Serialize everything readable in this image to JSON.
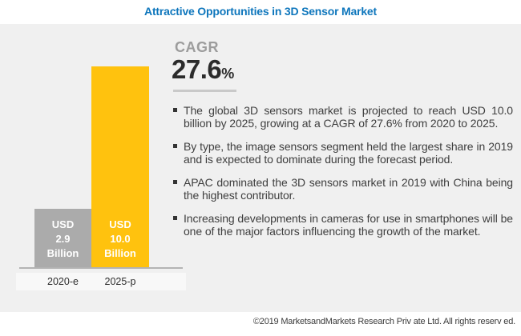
{
  "title": "Attractive Opportunities in 3D Sensor Market",
  "cagr": {
    "label": "CAGR",
    "value": "27.6",
    "percent_sign": "%"
  },
  "insights": [
    "The global 3D sensors market is projected to reach USD 10.0 billion by 2025, growing at a CAGR of 27.6% from 2020 to 2025.",
    "By type, the image sensors segment held the largest share in 2019 and is expected to dominate during the forecast period.",
    "APAC dominated the 3D sensors market in 2019 with China being the highest contributor.",
    "Increasing developments in cameras for use in smartphones will be one of the major factors influencing the growth of the market."
  ],
  "chart_data": {
    "type": "bar",
    "categories": [
      "2020-e",
      "2025-p"
    ],
    "values": [
      2.9,
      10.0
    ],
    "unit": "USD Billion",
    "ylim": [
      0,
      10
    ],
    "grid": false,
    "legend": false,
    "bars": [
      {
        "category": "2020-e",
        "value": 2.9,
        "label_lines": [
          "USD",
          "2.9",
          "Billion"
        ],
        "color": "#ababab"
      },
      {
        "category": "2025-p",
        "value": 10.0,
        "label_lines": [
          "USD",
          "10.0",
          "Billion"
        ],
        "color": "#ffc20e"
      }
    ]
  },
  "footer": "©2019 MarketsandMarkets Research Priv ate Ltd. All rights reserv ed.",
  "colors": {
    "title_blue": "#0e76bc",
    "panel_bg": "#f0f0f0",
    "bar_2020": "#ababab",
    "bar_2025": "#ffc20e",
    "axis_line": "#b3b3b3",
    "cagr_gray": "#9c9c9c",
    "value_dark": "#2b2b2b",
    "body_text": "#3e3e3e"
  }
}
